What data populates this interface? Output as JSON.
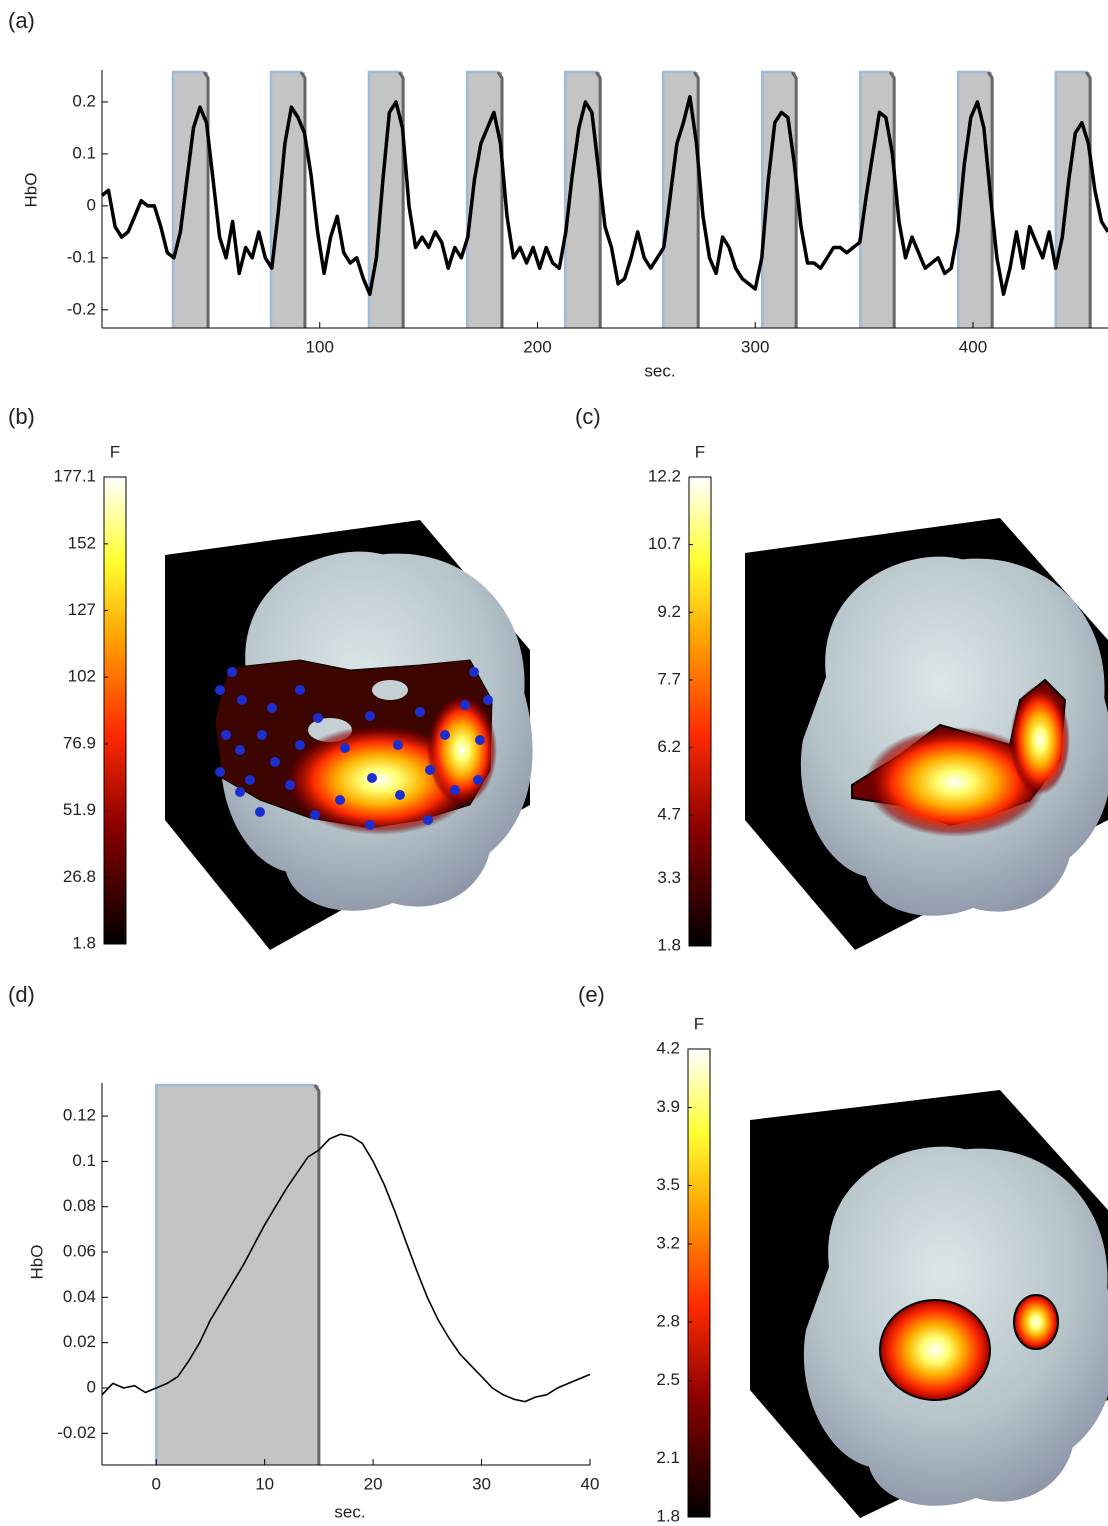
{
  "chart_data": [
    {
      "type": "line",
      "label": "(a)",
      "ylabel": "HbO",
      "xlabel": "sec.",
      "xlim": [
        0,
        462
      ],
      "ylim": [
        -0.235,
        0.2615
      ],
      "xticks": [
        100,
        200,
        300,
        400
      ],
      "yticks": [
        -0.2,
        -0.1,
        0,
        0.1,
        0.2
      ],
      "color": "#000000",
      "blocks": [
        [
          32.6,
          48.7
        ],
        [
          77.6,
          93.2
        ],
        [
          122.6,
          138.3
        ],
        [
          167.7,
          183.7
        ],
        [
          212.7,
          228.8
        ],
        [
          257.7,
          273.8
        ],
        [
          303.2,
          318.8
        ],
        [
          348.2,
          363.8
        ],
        [
          393.2,
          408.8
        ],
        [
          438,
          453.8
        ]
      ],
      "x": [
        0,
        3,
        6,
        9,
        12,
        15,
        18,
        21,
        24,
        27,
        30,
        33,
        36,
        39,
        42,
        45,
        48,
        51,
        54,
        57,
        60,
        63,
        66,
        69,
        72,
        75,
        78,
        81,
        84,
        87,
        90,
        93,
        96,
        99,
        102,
        105,
        108,
        111,
        114,
        117,
        120,
        123,
        126,
        129,
        132,
        135,
        138,
        141,
        144,
        147,
        150,
        153,
        156,
        159,
        162,
        165,
        168,
        171,
        174,
        177,
        180,
        183,
        186,
        189,
        192,
        195,
        198,
        201,
        204,
        207,
        210,
        213,
        216,
        219,
        222,
        225,
        228,
        231,
        234,
        237,
        240,
        243,
        246,
        249,
        252,
        255,
        258,
        261,
        264,
        267,
        270,
        273,
        276,
        279,
        282,
        285,
        288,
        291,
        294,
        297,
        300,
        303,
        306,
        309,
        312,
        315,
        318,
        321,
        324,
        327,
        330,
        333,
        336,
        339,
        342,
        345,
        348,
        351,
        354,
        357,
        360,
        363,
        366,
        369,
        372,
        375,
        378,
        381,
        384,
        387,
        390,
        393,
        396,
        399,
        402,
        405,
        408,
        411,
        414,
        417,
        420,
        423,
        426,
        429,
        432,
        435,
        438,
        441,
        444,
        447,
        450,
        453,
        456,
        459,
        462
      ],
      "values": [
        0.02,
        0.03,
        -0.04,
        -0.06,
        -0.05,
        -0.02,
        0.01,
        0,
        0,
        -0.04,
        -0.09,
        -0.1,
        -0.05,
        0.05,
        0.15,
        0.19,
        0.16,
        0.05,
        -0.06,
        -0.1,
        -0.03,
        -0.13,
        -0.08,
        -0.1,
        -0.05,
        -0.1,
        -0.12,
        -0.01,
        0.12,
        0.19,
        0.17,
        0.14,
        0.06,
        -0.05,
        -0.13,
        -0.06,
        -0.02,
        -0.09,
        -0.11,
        -0.1,
        -0.14,
        -0.17,
        -0.1,
        0.05,
        0.18,
        0.2,
        0.15,
        0,
        -0.08,
        -0.06,
        -0.08,
        -0.05,
        -0.07,
        -0.12,
        -0.08,
        -0.1,
        -0.06,
        0.05,
        0.12,
        0.15,
        0.18,
        0.12,
        -0.02,
        -0.1,
        -0.08,
        -0.11,
        -0.08,
        -0.12,
        -0.08,
        -0.11,
        -0.12,
        -0.05,
        0.06,
        0.15,
        0.2,
        0.18,
        0.07,
        -0.04,
        -0.08,
        -0.15,
        -0.14,
        -0.1,
        -0.05,
        -0.1,
        -0.12,
        -0.1,
        -0.08,
        0.02,
        0.12,
        0.16,
        0.21,
        0.12,
        -0.02,
        -0.1,
        -0.13,
        -0.06,
        -0.08,
        -0.12,
        -0.14,
        -0.15,
        -0.16,
        -0.1,
        0.05,
        0.16,
        0.18,
        0.17,
        0.08,
        -0.04,
        -0.11,
        -0.11,
        -0.12,
        -0.1,
        -0.08,
        -0.08,
        -0.09,
        -0.08,
        -0.07,
        0.02,
        0.1,
        0.18,
        0.17,
        0.1,
        -0.03,
        -0.1,
        -0.06,
        -0.09,
        -0.12,
        -0.11,
        -0.1,
        -0.13,
        -0.12,
        -0.05,
        0.08,
        0.17,
        0.2,
        0.15,
        0.02,
        -0.1,
        -0.17,
        -0.12,
        -0.05,
        -0.12,
        -0.04,
        -0.07,
        -0.1,
        -0.05,
        -0.12,
        -0.06,
        0.05,
        0.14,
        0.16,
        0.12,
        0.03,
        -0.03,
        -0.05
      ]
    },
    {
      "type": "colorbar",
      "label": "(b)",
      "colorbar_label": "F",
      "ylim": [
        1.8,
        177.1
      ],
      "yticks": [
        1.8,
        26.8,
        51.9,
        76.9,
        102,
        127,
        152,
        177.1
      ]
    },
    {
      "type": "colorbar",
      "label": "(c)",
      "colorbar_label": "F",
      "ylim": [
        1.8,
        12.2
      ],
      "yticks": [
        1.8,
        3.3,
        4.7,
        6.2,
        7.7,
        9.2,
        10.7,
        12.2
      ]
    },
    {
      "type": "line",
      "label": "(d)",
      "ylabel": "HbO",
      "xlabel": "sec.",
      "xlim": [
        -5,
        40
      ],
      "ylim": [
        -0.034,
        0.1346
      ],
      "xticks": [
        0,
        10,
        20,
        30,
        40
      ],
      "yticks": [
        -0.02,
        0,
        0.02,
        0.04,
        0.06,
        0.08,
        0.1,
        0.12
      ],
      "color": "#000000",
      "blocks": [
        [
          0,
          15
        ]
      ],
      "x": [
        -5,
        -4,
        -3,
        -2,
        -1,
        0,
        1,
        2,
        3,
        4,
        5,
        6,
        7,
        8,
        9,
        10,
        11,
        12,
        13,
        14,
        15,
        16,
        17,
        18,
        19,
        20,
        21,
        22,
        23,
        24,
        25,
        26,
        27,
        28,
        29,
        30,
        31,
        32,
        33,
        34,
        35,
        36,
        37,
        38,
        39,
        40
      ],
      "values": [
        -0.003,
        0.002,
        0,
        0.001,
        -0.002,
        0,
        0.002,
        0.005,
        0.012,
        0.02,
        0.03,
        0.038,
        0.046,
        0.054,
        0.063,
        0.072,
        0.08,
        0.088,
        0.095,
        0.102,
        0.105,
        0.11,
        0.112,
        0.111,
        0.108,
        0.1,
        0.09,
        0.078,
        0.065,
        0.052,
        0.04,
        0.03,
        0.022,
        0.015,
        0.01,
        0.005,
        0,
        -0.003,
        -0.005,
        -0.006,
        -0.004,
        -0.003,
        0,
        0.002,
        0.004,
        0.006
      ]
    },
    {
      "type": "colorbar",
      "label": "(e)",
      "colorbar_label": "F",
      "ylim": [
        1.8,
        4.2
      ],
      "yticks": [
        1.8,
        2.1,
        2.5,
        2.8,
        3.2,
        3.5,
        3.9,
        4.2
      ]
    }
  ]
}
